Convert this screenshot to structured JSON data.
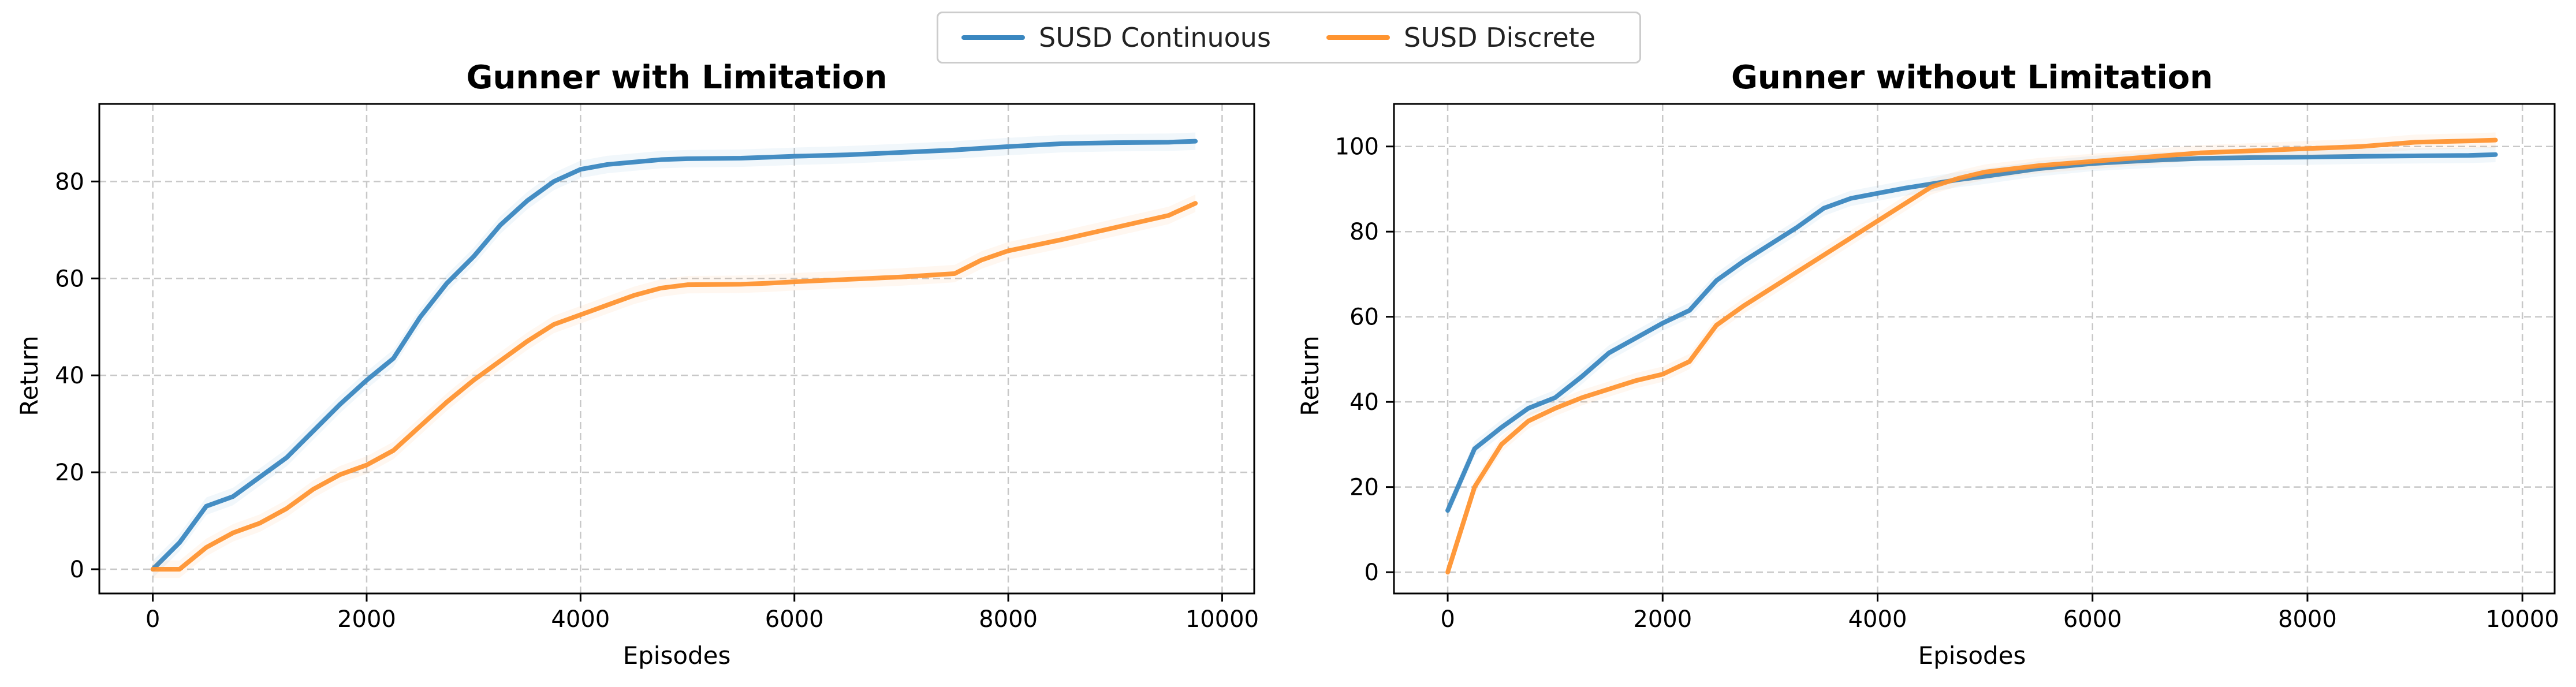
{
  "legend": {
    "items": [
      {
        "label": "SUSD Continuous",
        "color": "#3a87c0"
      },
      {
        "label": "SUSD Discrete",
        "color": "#ff9430"
      }
    ]
  },
  "chart_data": [
    {
      "type": "line",
      "title": "Gunner with Limitation",
      "xlabel": "Episodes",
      "ylabel": "Return",
      "xlim": [
        -500,
        10300
      ],
      "ylim": [
        -5,
        96
      ],
      "xticks": [
        0,
        2000,
        4000,
        6000,
        8000,
        10000
      ],
      "yticks": [
        0,
        20,
        40,
        60,
        80
      ],
      "grid": true,
      "series": [
        {
          "name": "SUSD Continuous",
          "color": "#3a87c0",
          "x": [
            0,
            250,
            500,
            750,
            1000,
            1250,
            1500,
            1750,
            2000,
            2250,
            2500,
            2750,
            3000,
            3250,
            3500,
            3750,
            4000,
            4250,
            4500,
            4750,
            5000,
            5500,
            5750,
            6000,
            6500,
            7000,
            7500,
            8000,
            8500,
            9000,
            9500,
            9750
          ],
          "y": [
            0,
            5.5,
            13,
            15,
            19,
            23,
            28.5,
            34,
            39,
            43.5,
            52,
            59,
            64.5,
            71,
            76,
            80,
            82.5,
            83.5,
            84,
            84.5,
            84.7,
            84.8,
            85,
            85.2,
            85.5,
            86,
            86.5,
            87.2,
            87.8,
            88,
            88.1,
            88.3
          ]
        },
        {
          "name": "SUSD Discrete",
          "color": "#ff9430",
          "x": [
            0,
            250,
            500,
            750,
            1000,
            1250,
            1500,
            1750,
            2000,
            2250,
            2500,
            2750,
            3000,
            3250,
            3500,
            3750,
            4000,
            4250,
            4500,
            4750,
            5000,
            5500,
            5750,
            6000,
            6500,
            7000,
            7500,
            7750,
            8000,
            8500,
            9000,
            9500,
            9750
          ],
          "y": [
            0,
            0,
            4.5,
            7.5,
            9.5,
            12.5,
            16.5,
            19.5,
            21.5,
            24.5,
            29.5,
            34.5,
            39,
            43,
            47,
            50.5,
            52.5,
            54.5,
            56.5,
            58,
            58.7,
            58.8,
            59,
            59.3,
            59.8,
            60.3,
            61,
            63.8,
            65.7,
            68,
            70.5,
            73,
            75.5
          ]
        }
      ]
    },
    {
      "type": "line",
      "title": "Gunner without Limitation",
      "xlabel": "Episodes",
      "ylabel": "Return",
      "xlim": [
        -500,
        10300
      ],
      "ylim": [
        -5,
        110
      ],
      "xticks": [
        0,
        2000,
        4000,
        6000,
        8000,
        10000
      ],
      "yticks": [
        0,
        20,
        40,
        60,
        80,
        100
      ],
      "grid": true,
      "series": [
        {
          "name": "SUSD Continuous",
          "color": "#3a87c0",
          "x": [
            0,
            250,
            500,
            750,
            1000,
            1250,
            1500,
            1750,
            2000,
            2250,
            2500,
            2750,
            3000,
            3250,
            3500,
            3750,
            4000,
            4250,
            4500,
            4750,
            5000,
            5500,
            6000,
            6500,
            7000,
            7500,
            8000,
            8500,
            9000,
            9500,
            9750
          ],
          "y": [
            14.5,
            29,
            34,
            38.5,
            41,
            46,
            51.5,
            55,
            58.5,
            61.5,
            68.5,
            73,
            77,
            81,
            85.5,
            87.8,
            89,
            90.2,
            91.2,
            92.2,
            93,
            94.8,
            96,
            96.7,
            97.2,
            97.4,
            97.5,
            97.7,
            97.8,
            97.9,
            98.1
          ]
        },
        {
          "name": "SUSD Discrete",
          "color": "#ff9430",
          "x": [
            0,
            250,
            500,
            750,
            1000,
            1250,
            1500,
            1750,
            2000,
            2250,
            2500,
            2750,
            3000,
            3250,
            3500,
            3750,
            4000,
            4250,
            4500,
            4750,
            5000,
            5500,
            6000,
            6500,
            7000,
            7500,
            8000,
            8500,
            9000,
            9500,
            9750
          ],
          "y": [
            0,
            20,
            30,
            35.5,
            38.5,
            41,
            43,
            45,
            46.5,
            49.5,
            58,
            62.5,
            66.5,
            70.5,
            74.5,
            78.5,
            82.5,
            86.5,
            90.5,
            92.5,
            94,
            95.5,
            96.5,
            97.5,
            98.5,
            99,
            99.5,
            100,
            101,
            101.3,
            101.5
          ]
        }
      ]
    }
  ]
}
